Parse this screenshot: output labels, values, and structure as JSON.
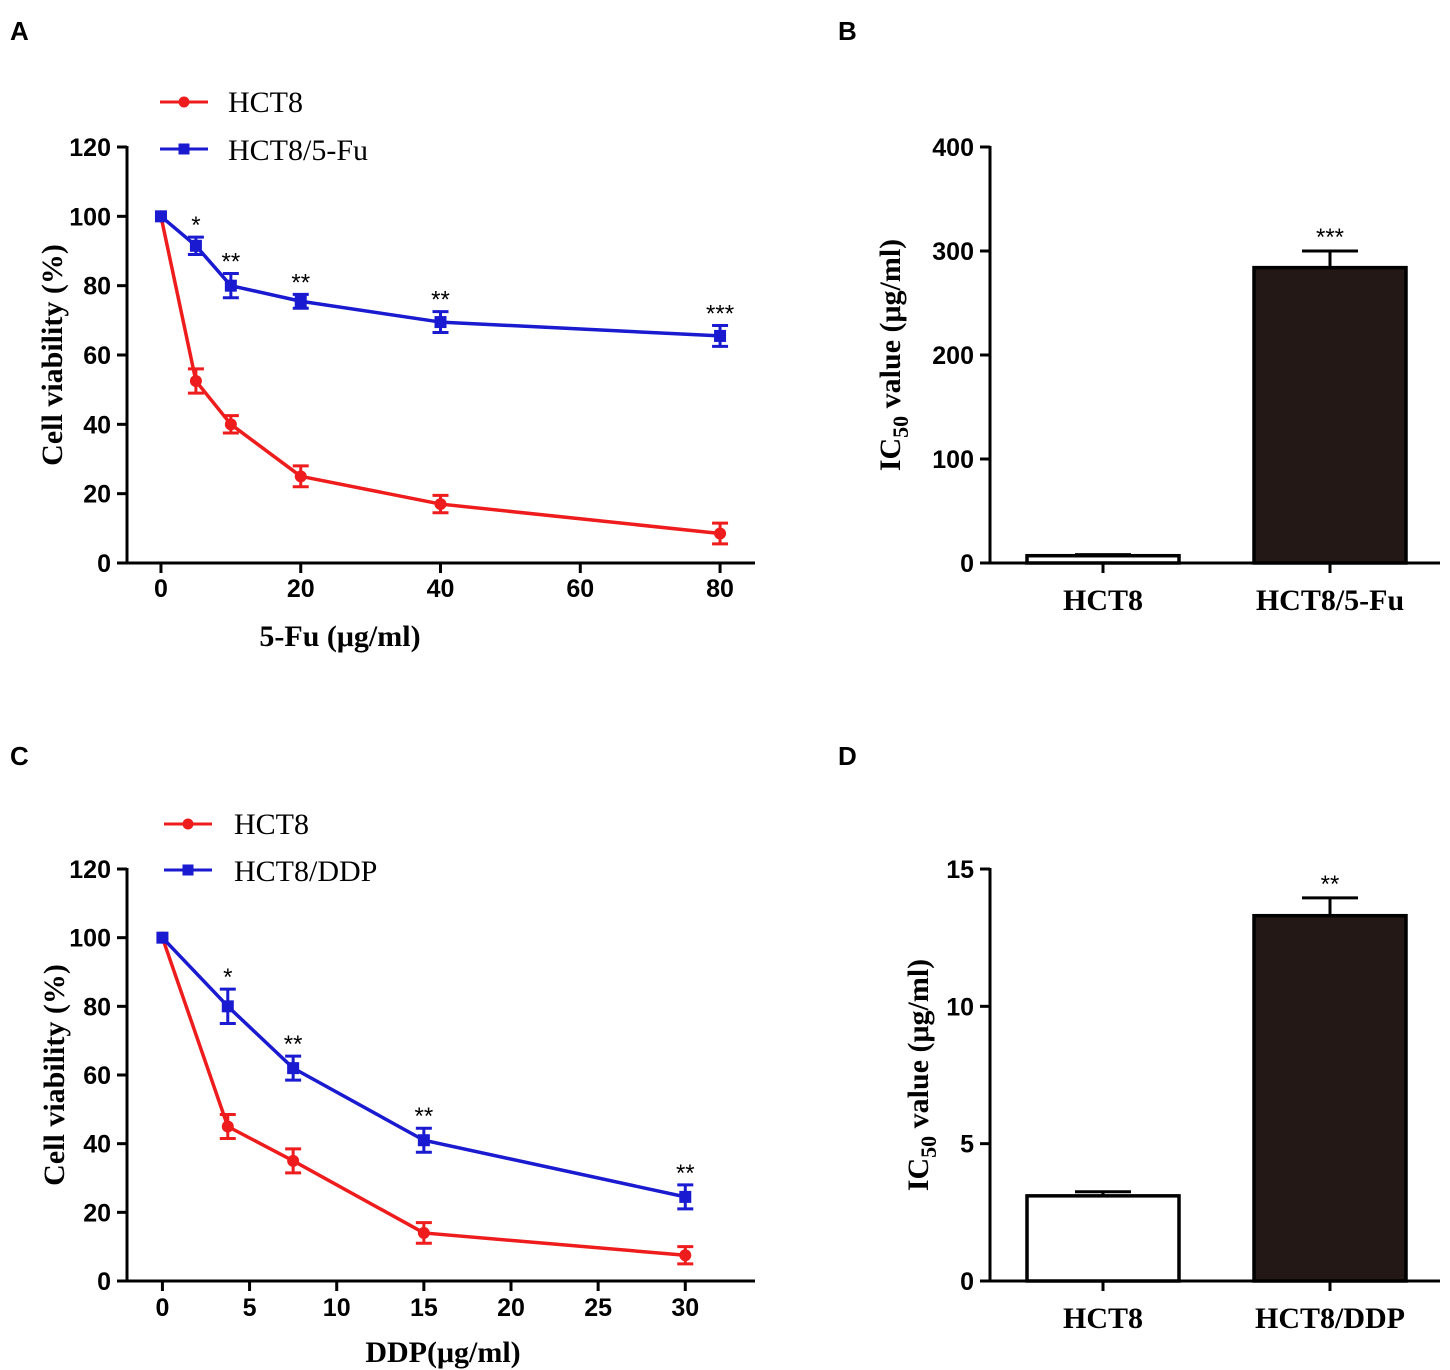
{
  "figure": {
    "colors": {
      "red": "#ee1c1c",
      "blue": "#1a1ad0",
      "black": "#000000",
      "bar_dark": "#231815",
      "bar_light": "#ffffff"
    }
  },
  "chart_data": [
    {
      "panel": "A",
      "type": "line",
      "xlabel": "5-Fu (μg/ml)",
      "ylabel": "Cell viability (%)",
      "xlim": [
        -3,
        85
      ],
      "ylim": [
        0,
        120
      ],
      "xticks": [
        0,
        20,
        40,
        60,
        80
      ],
      "yticks": [
        0,
        20,
        40,
        60,
        80,
        100,
        120
      ],
      "legend": [
        "HCT8",
        "HCT8/5-Fu"
      ],
      "series": [
        {
          "name": "HCT8",
          "color": "#ee1c1c",
          "marker": "circle",
          "x": [
            0,
            5,
            10,
            20,
            40,
            80
          ],
          "y": [
            100,
            52.5,
            40,
            25,
            17,
            8.5
          ],
          "err": [
            0,
            3.5,
            2.5,
            3,
            2.5,
            3
          ]
        },
        {
          "name": "HCT8/5-Fu",
          "color": "#1a1ad0",
          "marker": "square",
          "x": [
            0,
            5,
            10,
            20,
            40,
            80
          ],
          "y": [
            100,
            91.5,
            80,
            75.5,
            69.5,
            65.5
          ],
          "err": [
            0,
            2.5,
            3.5,
            2,
            3,
            3
          ]
        }
      ],
      "annotations": [
        {
          "x": 5,
          "y": 94,
          "text": "*"
        },
        {
          "x": 10,
          "y": 83.5,
          "text": "**"
        },
        {
          "x": 20,
          "y": 77.5,
          "text": "**"
        },
        {
          "x": 40,
          "y": 72.5,
          "text": "**"
        },
        {
          "x": 80,
          "y": 68.5,
          "text": "***"
        }
      ]
    },
    {
      "panel": "B",
      "type": "bar",
      "xlabel": "",
      "ylabel_main": "IC",
      "ylabel_sub": "50",
      "ylabel_rest": " value (μg/ml)",
      "ylim": [
        0,
        400
      ],
      "yticks": [
        0,
        100,
        200,
        300,
        400
      ],
      "categories": [
        "HCT8",
        "HCT8/5-Fu"
      ],
      "values": [
        7,
        284
      ],
      "err": [
        1,
        16
      ],
      "fills": [
        "#ffffff",
        "#231815"
      ],
      "annotations": [
        {
          "category": 1,
          "text": "***"
        }
      ]
    },
    {
      "panel": "C",
      "type": "line",
      "xlabel": "DDP(μg/ml)",
      "ylabel": "Cell viability (%)",
      "xlim": [
        -1,
        34
      ],
      "ylim": [
        0,
        120
      ],
      "xticks": [
        0,
        5,
        10,
        15,
        20,
        25,
        30
      ],
      "yticks": [
        0,
        20,
        40,
        60,
        80,
        100,
        120
      ],
      "legend": [
        "HCT8",
        "HCT8/DDP"
      ],
      "series": [
        {
          "name": "HCT8",
          "color": "#ee1c1c",
          "marker": "circle",
          "x": [
            0,
            3.75,
            7.5,
            15,
            30
          ],
          "y": [
            100,
            45,
            35,
            14,
            7.5
          ],
          "err": [
            0,
            3.5,
            3.5,
            3,
            2.5
          ]
        },
        {
          "name": "HCT8/DDP",
          "color": "#1a1ad0",
          "marker": "square",
          "x": [
            0,
            3.75,
            7.5,
            15,
            30
          ],
          "y": [
            100,
            80,
            62,
            41,
            24.5
          ],
          "err": [
            0,
            5,
            3.5,
            3.5,
            3.5
          ]
        }
      ],
      "annotations": [
        {
          "x": 3.75,
          "y": 85,
          "text": "*"
        },
        {
          "x": 7.5,
          "y": 65.5,
          "text": "**"
        },
        {
          "x": 15,
          "y": 44.5,
          "text": "**"
        },
        {
          "x": 30,
          "y": 28,
          "text": "**"
        }
      ]
    },
    {
      "panel": "D",
      "type": "bar",
      "xlabel": "",
      "ylabel_main": "IC",
      "ylabel_sub": "50",
      "ylabel_rest": " value (μg/ml)",
      "ylim": [
        0,
        15
      ],
      "yticks": [
        0,
        5,
        10,
        15
      ],
      "categories": [
        "HCT8",
        "HCT8/DDP"
      ],
      "values": [
        3.1,
        13.3
      ],
      "err": [
        0.15,
        0.65
      ],
      "fills": [
        "#ffffff",
        "#231815"
      ],
      "annotations": [
        {
          "category": 1,
          "text": "**"
        }
      ]
    }
  ]
}
